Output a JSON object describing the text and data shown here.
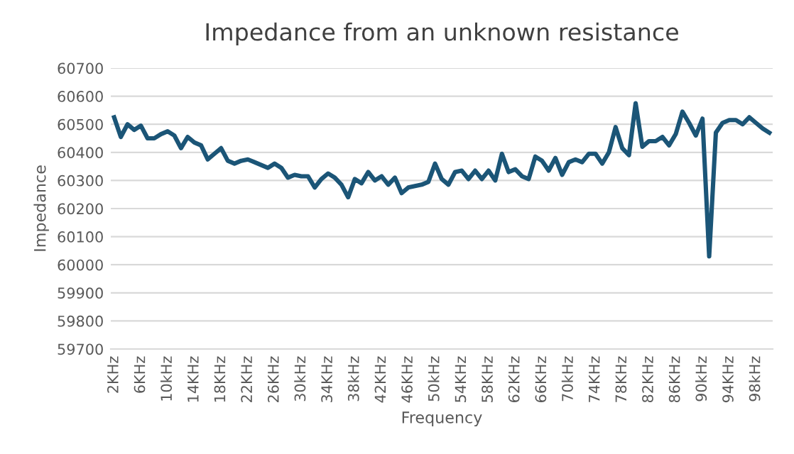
{
  "chart_data": {
    "type": "line",
    "title": "Impedance from an unknown resistance",
    "xlabel": "Frequency",
    "ylabel": "Impedance",
    "categories": [
      "2KHz",
      null,
      null,
      null,
      "6KHz",
      null,
      null,
      null,
      "10kHz",
      null,
      null,
      null,
      "14KHz",
      null,
      null,
      null,
      "18KHz",
      null,
      null,
      null,
      "22KHz",
      null,
      null,
      null,
      "26KHz",
      null,
      null,
      null,
      "30kHz",
      null,
      null,
      null,
      "34KHz",
      null,
      null,
      null,
      "38kHz",
      null,
      null,
      null,
      "42KHz",
      null,
      null,
      null,
      "46KHz",
      null,
      null,
      null,
      "50kHz",
      null,
      null,
      null,
      "54KHz",
      null,
      null,
      null,
      "58KHz",
      null,
      null,
      null,
      "62KHz",
      null,
      null,
      null,
      "66KHz",
      null,
      null,
      null,
      "70kHz",
      null,
      null,
      null,
      "74KHz",
      null,
      null,
      null,
      "78KHz",
      null,
      null,
      null,
      "82KHz",
      null,
      null,
      null,
      "86KHz",
      null,
      null,
      null,
      "90kHz",
      null,
      null,
      null,
      "94KHz",
      null,
      null,
      null,
      "98kHz",
      null,
      null
    ],
    "series": [
      {
        "color": "#1b5577",
        "values": [
          60525,
          60455,
          60500,
          60480,
          60495,
          60450,
          60450,
          60465,
          60475,
          60460,
          60415,
          60455,
          60435,
          60425,
          60375,
          60395,
          60415,
          60370,
          60360,
          60370,
          60375,
          60365,
          60355,
          60345,
          60360,
          60345,
          60310,
          60320,
          60315,
          60315,
          60275,
          60305,
          60325,
          60310,
          60285,
          60240,
          60305,
          60290,
          60330,
          60300,
          60315,
          60285,
          60310,
          60255,
          60275,
          60280,
          60285,
          60295,
          60360,
          60305,
          60285,
          60330,
          60335,
          60305,
          60335,
          60305,
          60335,
          60300,
          60395,
          60330,
          60340,
          60315,
          60305,
          60385,
          60370,
          60335,
          60380,
          60320,
          60365,
          60375,
          60365,
          60395,
          60395,
          60360,
          60400,
          60490,
          60415,
          60390,
          60575,
          60420,
          60440,
          60440,
          60455,
          60425,
          60465,
          60545,
          60505,
          60460,
          60520,
          60030,
          60470,
          60505,
          60515,
          60515,
          60500,
          60525,
          60505,
          60485,
          60470
        ]
      }
    ],
    "ylim": [
      59700,
      60700
    ],
    "yticks": [
      59700,
      59800,
      59900,
      60000,
      60100,
      60200,
      60300,
      60400,
      60500,
      60600,
      60700
    ],
    "grid": "y",
    "marker": "none",
    "line_style": "solid"
  }
}
